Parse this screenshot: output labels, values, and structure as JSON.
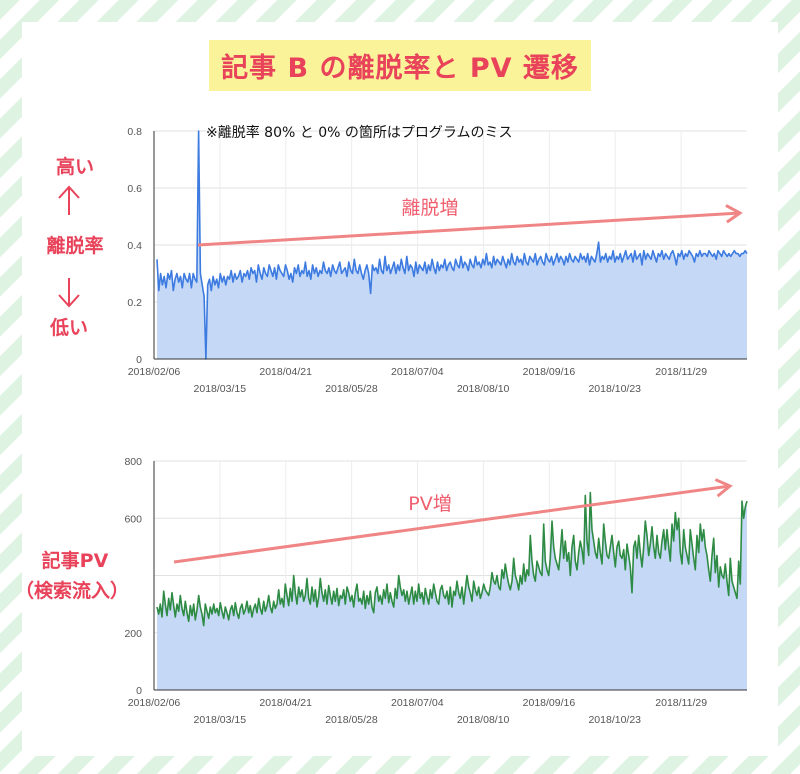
{
  "page": {
    "title": "記事 B の離脱率と PV 遷移"
  },
  "colors": {
    "accent": "#e8435a",
    "title_bg": "#fbf39a",
    "bounce_line": "#3d7be0",
    "pv_line": "#2e8b44",
    "area_fill": "#c5d9f7",
    "trend": "#f08585"
  },
  "top_chart": {
    "note": "※離脱率 80% と 0% の箇所はプログラムのミス",
    "side_high": "高い",
    "side_label": "離脱率",
    "side_low": "低い",
    "trend_label": "離脱増"
  },
  "bottom_chart": {
    "side_label_1": "記事PV",
    "side_label_2": "（検索流入）",
    "trend_label": "PV増"
  },
  "chart_data": [
    {
      "type": "area",
      "ylabel": "",
      "ylim": [
        0,
        0.8
      ],
      "y_ticks": [
        "0",
        "0.2",
        "0.4",
        "0.6",
        "0.8"
      ],
      "x_ticks_row1": [
        "2018/02/06",
        "2018/04/21",
        "2018/07/04",
        "2018/09/16",
        "2018/11/29"
      ],
      "x_ticks_row2": [
        "2018/03/15",
        "2018/05/28",
        "2018/08/10",
        "2018/10/23"
      ],
      "grid": true,
      "series": [
        {
          "values": [
            0.35,
            0.24,
            0.3,
            0.26,
            0.29,
            0.25,
            0.3,
            0.28,
            0.31,
            0.24,
            0.28,
            0.3,
            0.27,
            0.29,
            0.25,
            0.3,
            0.28,
            0.27,
            0.3,
            0.25,
            0.3,
            0.28,
            0.27,
            0.8,
            0.3,
            0.26,
            0.22,
            0.0,
            0.26,
            0.28,
            0.24,
            0.29,
            0.26,
            0.28,
            0.25,
            0.3,
            0.27,
            0.29,
            0.26,
            0.29,
            0.28,
            0.31,
            0.27,
            0.3,
            0.28,
            0.29,
            0.31,
            0.27,
            0.3,
            0.29,
            0.31,
            0.28,
            0.32,
            0.3,
            0.31,
            0.27,
            0.33,
            0.3,
            0.28,
            0.32,
            0.3,
            0.29,
            0.33,
            0.31,
            0.29,
            0.32,
            0.28,
            0.33,
            0.31,
            0.3,
            0.29,
            0.33,
            0.31,
            0.28,
            0.3,
            0.27,
            0.32,
            0.3,
            0.33,
            0.29,
            0.31,
            0.3,
            0.34,
            0.29,
            0.31,
            0.28,
            0.33,
            0.3,
            0.32,
            0.29,
            0.31,
            0.3,
            0.34,
            0.31,
            0.3,
            0.32,
            0.29,
            0.33,
            0.31,
            0.3,
            0.32,
            0.34,
            0.3,
            0.31,
            0.32,
            0.29,
            0.34,
            0.31,
            0.3,
            0.35,
            0.31,
            0.3,
            0.33,
            0.3,
            0.28,
            0.31,
            0.33,
            0.3,
            0.23,
            0.33,
            0.31,
            0.32,
            0.3,
            0.35,
            0.31,
            0.3,
            0.36,
            0.31,
            0.33,
            0.3,
            0.32,
            0.34,
            0.3,
            0.33,
            0.31,
            0.35,
            0.32,
            0.3,
            0.36,
            0.31,
            0.33,
            0.32,
            0.29,
            0.34,
            0.3,
            0.33,
            0.32,
            0.31,
            0.34,
            0.3,
            0.33,
            0.31,
            0.35,
            0.32,
            0.3,
            0.34,
            0.31,
            0.33,
            0.32,
            0.35,
            0.31,
            0.33,
            0.34,
            0.32,
            0.31,
            0.35,
            0.33,
            0.32,
            0.36,
            0.32,
            0.34,
            0.33,
            0.31,
            0.35,
            0.33,
            0.32,
            0.36,
            0.33,
            0.34,
            0.32,
            0.35,
            0.33,
            0.37,
            0.33,
            0.34,
            0.32,
            0.36,
            0.33,
            0.35,
            0.34,
            0.33,
            0.36,
            0.34,
            0.32,
            0.35,
            0.33,
            0.37,
            0.34,
            0.33,
            0.36,
            0.34,
            0.35,
            0.33,
            0.37,
            0.34,
            0.33,
            0.36,
            0.35,
            0.34,
            0.37,
            0.33,
            0.35,
            0.36,
            0.34,
            0.33,
            0.37,
            0.35,
            0.34,
            0.36,
            0.33,
            0.35,
            0.37,
            0.34,
            0.36,
            0.35,
            0.33,
            0.36,
            0.34,
            0.37,
            0.35,
            0.34,
            0.36,
            0.35,
            0.34,
            0.37,
            0.35,
            0.36,
            0.34,
            0.37,
            0.33,
            0.36,
            0.35,
            0.34,
            0.37,
            0.41,
            0.34,
            0.36,
            0.35,
            0.37,
            0.34,
            0.36,
            0.35,
            0.38,
            0.34,
            0.36,
            0.35,
            0.37,
            0.34,
            0.36,
            0.38,
            0.35,
            0.36,
            0.37,
            0.34,
            0.38,
            0.35,
            0.36,
            0.37,
            0.33,
            0.38,
            0.35,
            0.37,
            0.36,
            0.35,
            0.38,
            0.36,
            0.34,
            0.37,
            0.36,
            0.38,
            0.35,
            0.37,
            0.36,
            0.35,
            0.37,
            0.38,
            0.36,
            0.33,
            0.37,
            0.36,
            0.38,
            0.35,
            0.37,
            0.36,
            0.38,
            0.37,
            0.36,
            0.34,
            0.37,
            0.36,
            0.38,
            0.36,
            0.37,
            0.37,
            0.36,
            0.38,
            0.37,
            0.36,
            0.37,
            0.35,
            0.38,
            0.37,
            0.36,
            0.38,
            0.37,
            0.36,
            0.37,
            0.36,
            0.37,
            0.38,
            0.37,
            0.37,
            0.36,
            0.37,
            0.37,
            0.38,
            0.37
          ]
        }
      ]
    },
    {
      "type": "area",
      "ylabel": "",
      "ylim": [
        0,
        800
      ],
      "y_ticks": [
        "0",
        "200",
        "",
        "600",
        "800"
      ],
      "x_ticks_row1": [
        "2018/02/06",
        "2018/04/21",
        "2018/07/04",
        "2018/09/16",
        "2018/11/29"
      ],
      "x_ticks_row2": [
        "2018/03/15",
        "2018/05/28",
        "2018/08/10",
        "2018/10/23"
      ],
      "grid": true,
      "series": [
        {
          "values": [
            290,
            265,
            300,
            255,
            345,
            300,
            260,
            320,
            280,
            340,
            295,
            255,
            300,
            275,
            330,
            285,
            260,
            310,
            270,
            240,
            295,
            260,
            300,
            245,
            280,
            330,
            290,
            265,
            225,
            300,
            275,
            250,
            290,
            265,
            300,
            270,
            285,
            260,
            305,
            275,
            250,
            290,
            270,
            245,
            280,
            295,
            260,
            305,
            270,
            250,
            285,
            300,
            265,
            280,
            310,
            270,
            295,
            255,
            285,
            300,
            270,
            320,
            285,
            265,
            310,
            275,
            295,
            330,
            290,
            270,
            310,
            285,
            300,
            350,
            300,
            320,
            290,
            370,
            330,
            295,
            355,
            310,
            400,
            340,
            300,
            360,
            325,
            350,
            310,
            330,
            390,
            320,
            300,
            360,
            310,
            350,
            290,
            325,
            390,
            340,
            310,
            350,
            300,
            365,
            330,
            300,
            345,
            310,
            355,
            295,
            330,
            320,
            350,
            300,
            360,
            340,
            310,
            330,
            290,
            340,
            370,
            310,
            320,
            300,
            345,
            285,
            330,
            300,
            345,
            290,
            270,
            340,
            360,
            310,
            330,
            300,
            350,
            320,
            370,
            305,
            340,
            310,
            290,
            355,
            320,
            400,
            360,
            330,
            350,
            310,
            345,
            300,
            330,
            360,
            300,
            345,
            310,
            370,
            320,
            340,
            300,
            355,
            325,
            300,
            350,
            320,
            370,
            340,
            310,
            300,
            350,
            365,
            330,
            320,
            345,
            300,
            360,
            290,
            345,
            330,
            380,
            340,
            320,
            360,
            300,
            350,
            400,
            360,
            340,
            310,
            380,
            350,
            330,
            360,
            320,
            340,
            370,
            350,
            340,
            330,
            360,
            410,
            380,
            370,
            400,
            360,
            350,
            420,
            390,
            440,
            400,
            370,
            350,
            380,
            460,
            400,
            380,
            350,
            400,
            370,
            440,
            380,
            420,
            400,
            540,
            450,
            400,
            380,
            450,
            430,
            410,
            400,
            580,
            450,
            420,
            400,
            460,
            590,
            500,
            460,
            440,
            420,
            480,
            560,
            460,
            520,
            450,
            480,
            400,
            500,
            540,
            450,
            420,
            480,
            520,
            490,
            440,
            680,
            520,
            470,
            690,
            560,
            520,
            480,
            460,
            530,
            480,
            440,
            580,
            520,
            470,
            460,
            500,
            540,
            480,
            430,
            500,
            520,
            470,
            460,
            490,
            420,
            510,
            470,
            430,
            340,
            500,
            520,
            460,
            540,
            480,
            430,
            500,
            590,
            540,
            470,
            510,
            570,
            500,
            460,
            540,
            480,
            460,
            520,
            560,
            490,
            560,
            500,
            450,
            580,
            520,
            620,
            560,
            600,
            480,
            440,
            560,
            500,
            470,
            440,
            560,
            510,
            460,
            420,
            540,
            480,
            580,
            520,
            560,
            500,
            470,
            420,
            380,
            470,
            530,
            410,
            470,
            360,
            430,
            400,
            390,
            440,
            380,
            330,
            460,
            380,
            360,
            340,
            320,
            450,
            370,
            660,
            600,
            640,
            660
          ]
        }
      ]
    }
  ]
}
